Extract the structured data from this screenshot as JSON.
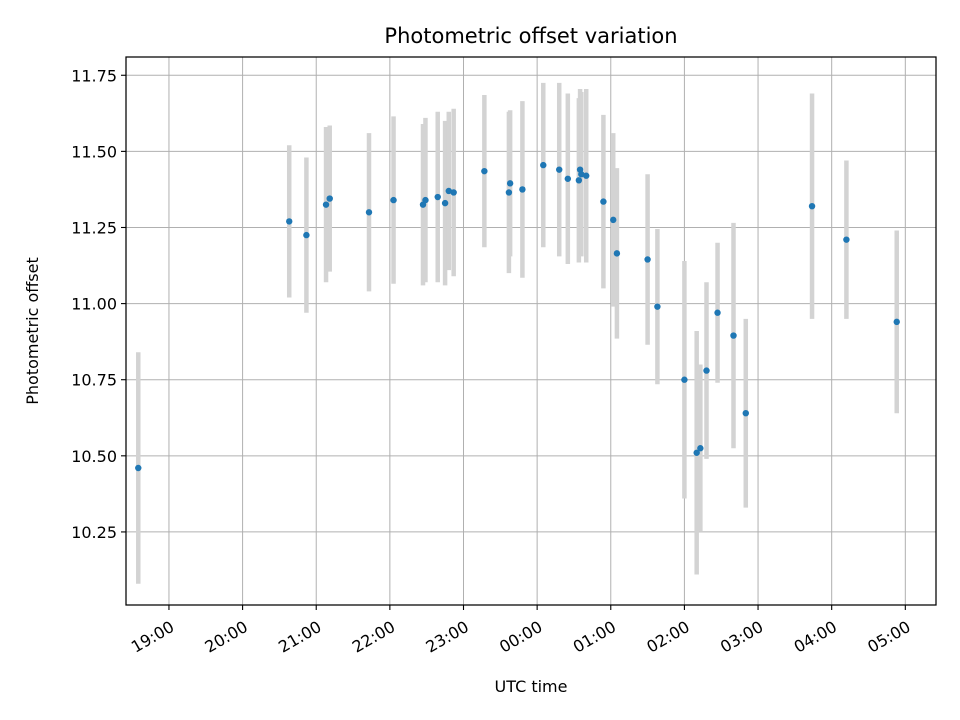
{
  "chart_data": {
    "type": "scatter",
    "title": "Photometric offset variation",
    "xlabel": "UTC time",
    "ylabel": "Photometric offset",
    "x_ticks": [
      "19:00",
      "20:00",
      "21:00",
      "22:00",
      "23:00",
      "00:00",
      "01:00",
      "02:00",
      "03:00",
      "04:00",
      "05:00"
    ],
    "y_ticks": [
      "10.25",
      "10.50",
      "10.75",
      "11.00",
      "11.25",
      "11.50",
      "11.75"
    ],
    "xlim": [
      "18:25",
      "05:25"
    ],
    "ylim": [
      10.01,
      11.81
    ],
    "grid": true,
    "colors": {
      "points": "#1f77b4",
      "errorbars": "#d3d3d3",
      "grid": "#b0b0b0"
    },
    "points": [
      {
        "t": "18:35",
        "y": 10.46,
        "err": 0.38
      },
      {
        "t": "20:38",
        "y": 11.27,
        "err": 0.25
      },
      {
        "t": "20:52",
        "y": 11.225,
        "err": 0.255
      },
      {
        "t": "21:08",
        "y": 11.325,
        "err": 0.255
      },
      {
        "t": "21:11",
        "y": 11.345,
        "err": 0.24
      },
      {
        "t": "21:43",
        "y": 11.3,
        "err": 0.26
      },
      {
        "t": "22:03",
        "y": 11.34,
        "err": 0.275
      },
      {
        "t": "22:27",
        "y": 11.325,
        "err": 0.265
      },
      {
        "t": "22:29",
        "y": 11.34,
        "err": 0.27
      },
      {
        "t": "22:39",
        "y": 11.35,
        "err": 0.28
      },
      {
        "t": "22:45",
        "y": 11.33,
        "err": 0.27
      },
      {
        "t": "22:48",
        "y": 11.37,
        "err": 0.26
      },
      {
        "t": "22:52",
        "y": 11.365,
        "err": 0.275
      },
      {
        "t": "23:17",
        "y": 11.435,
        "err": 0.25
      },
      {
        "t": "23:37",
        "y": 11.365,
        "err": 0.265
      },
      {
        "t": "23:38",
        "y": 11.395,
        "err": 0.24
      },
      {
        "t": "23:48",
        "y": 11.375,
        "err": 0.29
      },
      {
        "t": "00:05",
        "y": 11.455,
        "err": 0.27
      },
      {
        "t": "00:18",
        "y": 11.44,
        "err": 0.285
      },
      {
        "t": "00:25",
        "y": 11.41,
        "err": 0.28
      },
      {
        "t": "00:34",
        "y": 11.405,
        "err": 0.27
      },
      {
        "t": "00:35",
        "y": 11.44,
        "err": 0.265
      },
      {
        "t": "00:36",
        "y": 11.425,
        "err": 0.27
      },
      {
        "t": "00:40",
        "y": 11.42,
        "err": 0.285
      },
      {
        "t": "00:54",
        "y": 11.335,
        "err": 0.285
      },
      {
        "t": "01:02",
        "y": 11.275,
        "err": 0.285
      },
      {
        "t": "01:05",
        "y": 11.165,
        "err": 0.28
      },
      {
        "t": "01:30",
        "y": 11.145,
        "err": 0.28
      },
      {
        "t": "01:38",
        "y": 10.99,
        "err": 0.255
      },
      {
        "t": "02:00",
        "y": 10.75,
        "err": 0.39
      },
      {
        "t": "02:10",
        "y": 10.51,
        "err": 0.4
      },
      {
        "t": "02:13",
        "y": 10.525,
        "err": 0.275
      },
      {
        "t": "02:18",
        "y": 10.78,
        "err": 0.29
      },
      {
        "t": "02:27",
        "y": 10.97,
        "err": 0.23
      },
      {
        "t": "02:40",
        "y": 10.895,
        "err": 0.37
      },
      {
        "t": "02:50",
        "y": 10.64,
        "err": 0.31
      },
      {
        "t": "03:44",
        "y": 11.32,
        "err": 0.37
      },
      {
        "t": "04:12",
        "y": 11.21,
        "err": 0.26
      },
      {
        "t": "04:53",
        "y": 10.94,
        "err": 0.3
      }
    ]
  }
}
